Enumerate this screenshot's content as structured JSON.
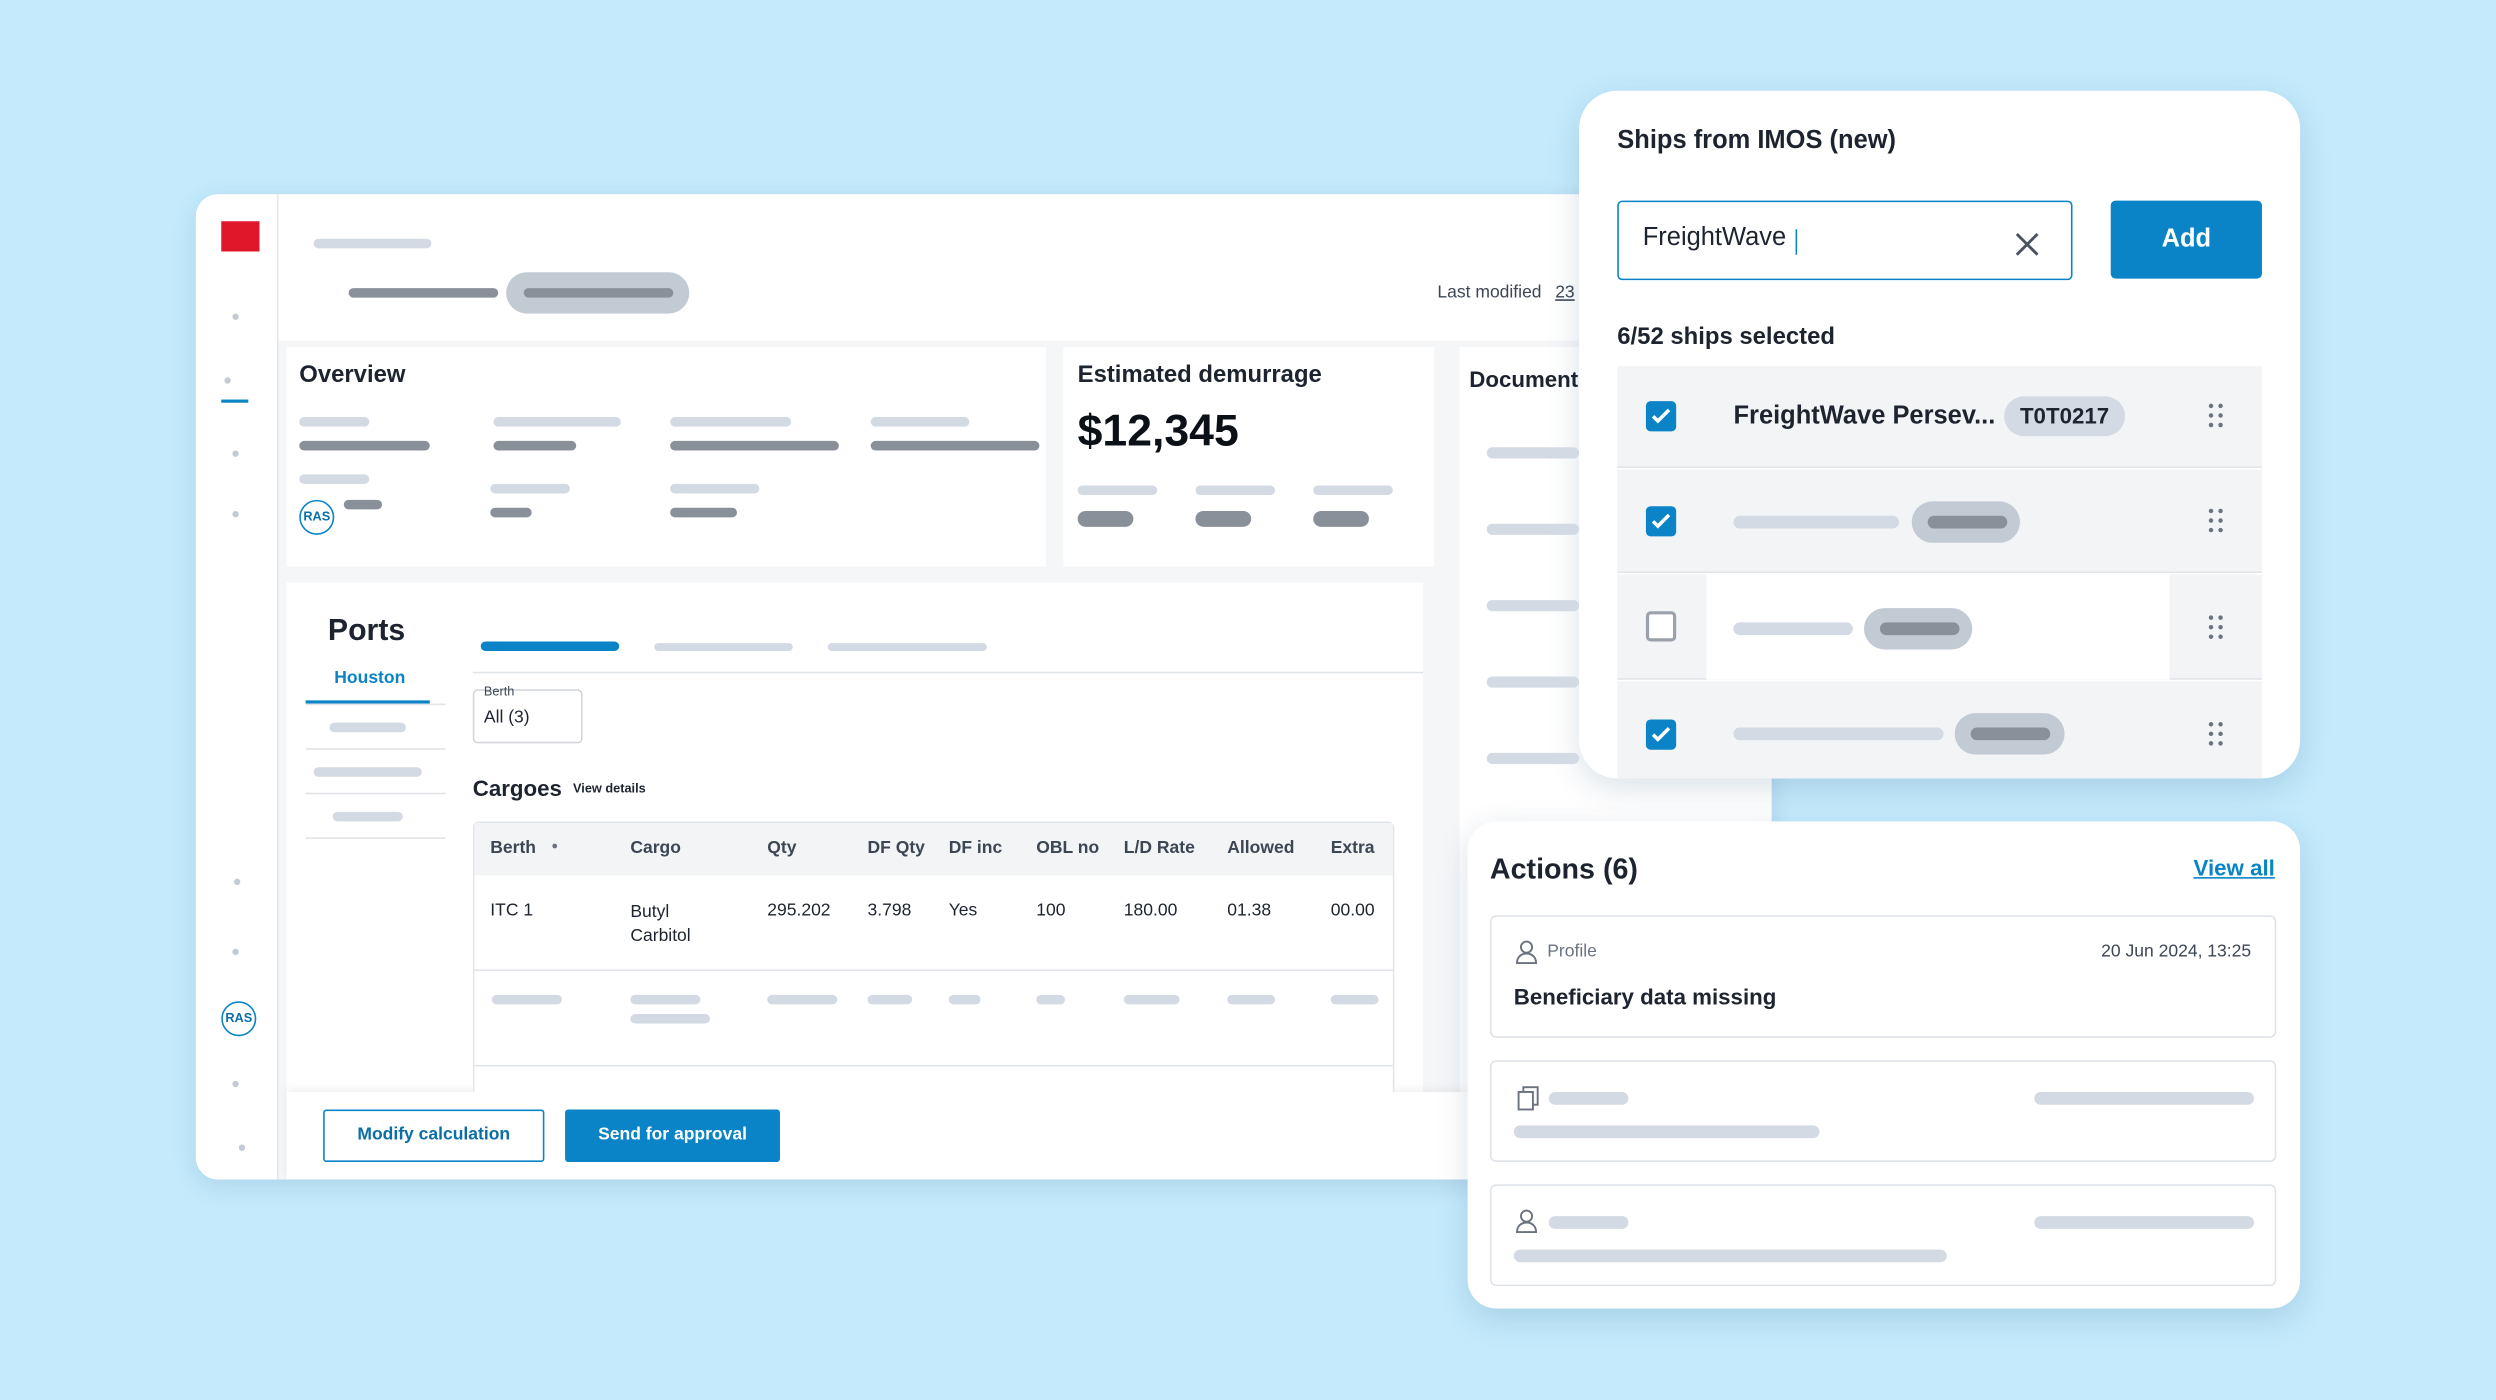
{
  "main": {
    "last_modified_label": "Last modified",
    "last_modified_value": "23",
    "overview": {
      "title": "Overview",
      "badge": "RAS"
    },
    "demurrage": {
      "title": "Estimated demurrage",
      "amount": "$12,345"
    },
    "documents": {
      "title": "Documents"
    },
    "sidebar_badge": "RAS",
    "ports": {
      "title": "Ports",
      "active_port": "Houston",
      "berth_label": "Berth",
      "berth_value": "All (3)",
      "cargoes_title": "Cargoes",
      "view_details": "View details",
      "table": {
        "columns": [
          "Berth",
          "Cargo",
          "Qty",
          "DF Qty",
          "DF inc",
          "OBL no",
          "L/D Rate",
          "Allowed",
          "Extra"
        ],
        "rows": [
          [
            "ITC 1",
            "Butyl Carbitol",
            "295.202",
            "3.798",
            "Yes",
            "100",
            "180.00",
            "01.38",
            "00.00"
          ]
        ]
      }
    },
    "buttons": {
      "modify": "Modify calculation",
      "send": "Send for approval"
    }
  },
  "ships_panel": {
    "title": "Ships from IMOS (new)",
    "search_value": "FreightWave",
    "add_button": "Add",
    "selected_count": "6/52 ships selected",
    "first_ship": {
      "name": "FreightWave Persev...",
      "code": "T0T0217"
    }
  },
  "actions_panel": {
    "title": "Actions (6)",
    "view_all": "View all",
    "first_action": {
      "category": "Profile",
      "date": "20 Jun 2024, 13:25",
      "text": "Beneficiary data missing"
    }
  }
}
